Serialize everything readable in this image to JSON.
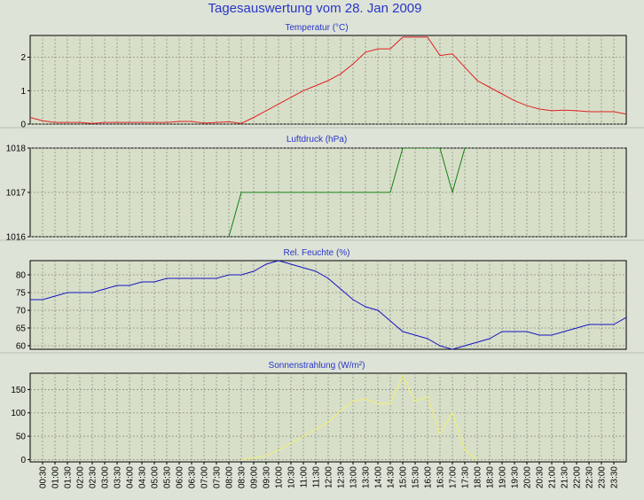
{
  "page": {
    "title": "Tagesauswertung vom 28. Jan 2009",
    "background": "#dde3d7",
    "plot_background": "#d8dfc9",
    "title_color": "#2a35c8"
  },
  "time_labels": [
    "00:30",
    "01:00",
    "01:30",
    "02:00",
    "02:30",
    "03:00",
    "03:30",
    "04:00",
    "04:30",
    "05:00",
    "05:30",
    "06:00",
    "06:30",
    "07:00",
    "07:30",
    "08:00",
    "08:30",
    "09:00",
    "09:30",
    "10:00",
    "10:30",
    "11:00",
    "11:30",
    "12:00",
    "12:30",
    "13:00",
    "13:30",
    "14:00",
    "14:30",
    "15:00",
    "15:30",
    "16:00",
    "16:30",
    "17:00",
    "17:30",
    "18:00",
    "18:30",
    "19:00",
    "19:30",
    "20:00",
    "20:30",
    "21:00",
    "21:30",
    "22:00",
    "22:30",
    "23:00",
    "23:30"
  ],
  "chart_data": [
    {
      "type": "line",
      "title": "Temperatur (°C)",
      "color": "#e02020",
      "ylim": [
        0,
        2.65
      ],
      "yticks": [
        0,
        1,
        2
      ],
      "x": [
        0,
        0.5,
        1,
        1.5,
        2,
        2.5,
        3,
        3.5,
        4,
        4.5,
        5,
        5.5,
        6,
        6.5,
        7,
        7.5,
        8,
        8.5,
        9,
        9.5,
        10,
        10.5,
        11,
        11.5,
        12,
        12.5,
        13,
        13.5,
        14,
        14.5,
        15,
        15.5,
        16,
        16.5,
        17,
        17.5,
        18,
        18.5,
        19,
        19.5,
        20,
        20.5,
        21,
        21.5,
        22,
        22.5,
        23,
        23.5,
        24
      ],
      "values": [
        0.2,
        0.1,
        0.05,
        0.05,
        0.05,
        0.02,
        0.05,
        0.05,
        0.05,
        0.05,
        0.05,
        0.05,
        0.08,
        0.08,
        0.03,
        0.05,
        0.07,
        0.02,
        0.2,
        0.4,
        0.6,
        0.8,
        1.0,
        1.15,
        1.3,
        1.5,
        1.8,
        2.15,
        2.25,
        2.25,
        2.6,
        2.6,
        2.6,
        2.05,
        2.1,
        1.7,
        1.3,
        1.1,
        0.9,
        0.7,
        0.55,
        0.45,
        0.4,
        0.42,
        0.4,
        0.37,
        0.37,
        0.37,
        0.3
      ]
    },
    {
      "type": "line",
      "title": "Luftdruck (hPa)",
      "color": "#158015",
      "ylim": [
        1016,
        1018
      ],
      "yticks": [
        1016,
        1017,
        1018
      ],
      "x": [
        8,
        8.5,
        14.5,
        15,
        16.5,
        17,
        17.5
      ],
      "values": [
        1016,
        1017,
        1017,
        1018,
        1018,
        1017,
        1018
      ]
    },
    {
      "type": "line",
      "title": "Rel. Feuchte (%)",
      "color": "#1515c0",
      "ylim": [
        59,
        84
      ],
      "yticks": [
        60,
        65,
        70,
        75,
        80
      ],
      "x": [
        0,
        0.5,
        1,
        1.5,
        2,
        2.5,
        3,
        3.5,
        4,
        4.5,
        5,
        5.5,
        6,
        6.5,
        7,
        7.5,
        8,
        8.5,
        9,
        9.5,
        10,
        10.5,
        11,
        11.5,
        12,
        12.5,
        13,
        13.5,
        14,
        14.5,
        15,
        15.5,
        16,
        16.5,
        17,
        17.5,
        18,
        18.5,
        19,
        19.5,
        20,
        20.5,
        21,
        21.5,
        22,
        22.5,
        23,
        23.5,
        24
      ],
      "values": [
        73,
        73,
        74,
        75,
        75,
        75,
        76,
        77,
        77,
        78,
        78,
        79,
        79,
        79,
        79,
        79,
        80,
        80,
        81,
        83,
        84,
        83,
        82,
        81,
        79,
        76,
        73,
        71,
        70,
        67,
        64,
        63,
        62,
        60,
        59,
        60,
        61,
        62,
        64,
        64,
        64,
        63,
        63,
        64,
        65,
        66,
        66,
        66,
        68
      ]
    },
    {
      "type": "line",
      "title": "Sonnenstrahlung (W/m²)",
      "color": "#f0f070",
      "ylim": [
        -5,
        185
      ],
      "yticks": [
        0,
        50,
        100,
        150
      ],
      "x": [
        8.5,
        9,
        9.5,
        10,
        10.5,
        11,
        11.5,
        12,
        12.5,
        13,
        13.5,
        14,
        14.5,
        15,
        15.5,
        16,
        16.5,
        17,
        17.5,
        18
      ],
      "values": [
        0,
        3,
        8,
        20,
        35,
        50,
        65,
        80,
        105,
        125,
        130,
        120,
        120,
        180,
        125,
        135,
        55,
        100,
        20,
        0
      ]
    }
  ]
}
